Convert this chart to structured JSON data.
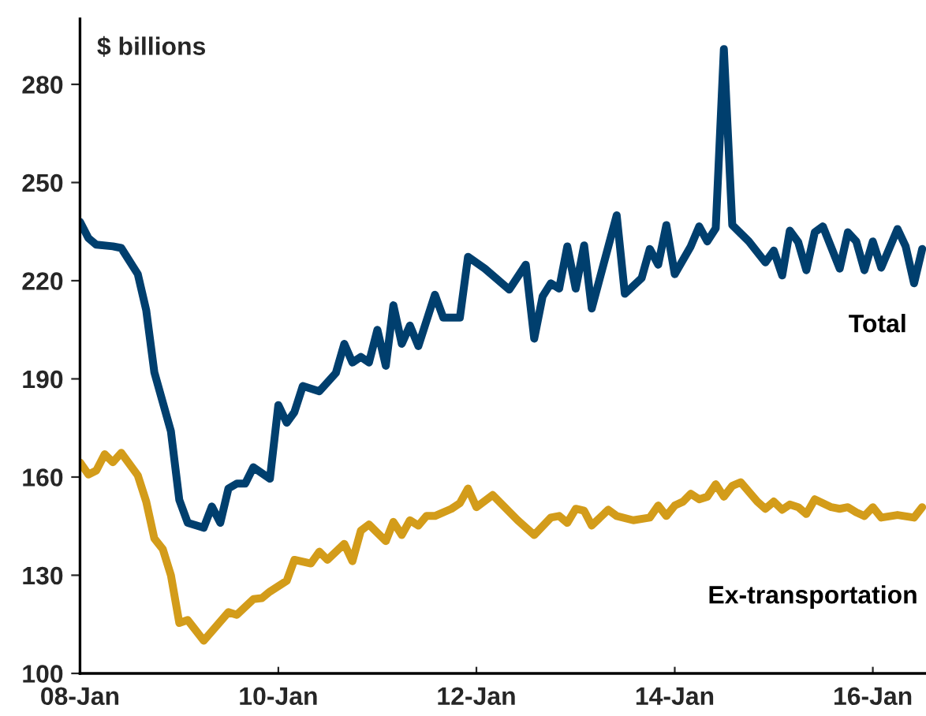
{
  "chart_data": {
    "type": "line",
    "ylabel": "$ billions",
    "xlim": [
      "2008-01",
      "2016-07-15"
    ],
    "xticks": [
      {
        "value": "2008-01",
        "label": "08-Jan"
      },
      {
        "value": "2010-01",
        "label": "10-Jan"
      },
      {
        "value": "2012-01",
        "label": "12-Jan"
      },
      {
        "value": "2014-01",
        "label": "14-Jan"
      },
      {
        "value": "2016-01",
        "label": "16-Jan"
      }
    ],
    "ylim": [
      100,
      300
    ],
    "yticks": [
      100,
      130,
      160,
      190,
      220,
      250,
      280
    ],
    "line_style": "solid",
    "series": [
      {
        "name": "Total",
        "color": "#003f6e",
        "x": [
          "2008-01",
          "2008-02",
          "2008-03",
          "2008-05",
          "2008-06",
          "2008-08",
          "2008-09",
          "2008-10",
          "2008-12",
          "2009-01",
          "2009-02",
          "2009-04",
          "2009-05",
          "2009-06",
          "2009-07",
          "2009-08",
          "2009-09",
          "2009-10",
          "2009-12",
          "2010-01",
          "2010-02",
          "2010-03",
          "2010-04",
          "2010-06",
          "2010-08",
          "2010-09",
          "2010-10",
          "2010-11",
          "2010-12",
          "2011-01",
          "2011-02",
          "2011-03",
          "2011-04",
          "2011-05",
          "2011-06",
          "2011-08",
          "2011-09",
          "2011-11",
          "2011-12",
          "2012-02",
          "2012-05",
          "2012-07",
          "2012-08",
          "2012-09",
          "2012-10",
          "2012-11",
          "2012-12",
          "2013-01",
          "2013-02",
          "2013-03",
          "2013-06",
          "2013-07",
          "2013-09",
          "2013-10",
          "2013-11",
          "2013-12",
          "2014-01",
          "2014-03",
          "2014-04",
          "2014-05",
          "2014-06",
          "2014-07",
          "2014-08",
          "2014-10",
          "2014-12",
          "2015-01",
          "2015-02",
          "2015-03",
          "2015-04",
          "2015-05",
          "2015-06",
          "2015-07",
          "2015-09",
          "2015-10",
          "2015-11",
          "2015-12",
          "2016-01",
          "2016-02",
          "2016-04",
          "2016-05",
          "2016-06",
          "2016-07"
        ],
        "values": [
          238,
          233,
          231,
          230.5,
          230,
          222,
          211,
          192,
          174,
          153,
          146,
          144.5,
          151,
          146,
          156.5,
          158,
          158,
          163,
          159.5,
          182,
          176.6,
          179.8,
          187.8,
          186.2,
          191.8,
          200.7,
          195,
          196.7,
          195,
          205,
          194,
          212.5,
          200.7,
          206.3,
          200,
          215.7,
          208.7,
          208.7,
          227.3,
          223.7,
          217.3,
          224.9,
          202.3,
          215.2,
          219.2,
          217.6,
          230.5,
          217.6,
          230.8,
          211.5,
          240,
          216,
          220.8,
          229.7,
          224.9,
          237,
          222,
          230.5,
          236.6,
          232,
          236,
          290.8,
          237,
          232,
          225.6,
          229.2,
          221.6,
          235.3,
          231.8,
          223.2,
          234.8,
          236.6,
          223.7,
          234.8,
          232,
          223.2,
          232,
          224,
          235.8,
          230.5,
          219.2,
          229.7
        ]
      },
      {
        "name": "Ex-transportation",
        "color": "#d39c1a",
        "x": [
          "2008-01",
          "2008-02",
          "2008-03",
          "2008-04",
          "2008-05",
          "2008-06",
          "2008-08",
          "2008-09",
          "2008-10",
          "2008-11",
          "2008-12",
          "2009-01",
          "2009-02",
          "2009-04",
          "2009-07",
          "2009-08",
          "2009-10",
          "2009-11",
          "2009-12",
          "2010-02",
          "2010-03",
          "2010-05",
          "2010-06",
          "2010-07",
          "2010-09",
          "2010-10",
          "2010-11",
          "2010-12",
          "2011-02",
          "2011-03",
          "2011-04",
          "2011-05",
          "2011-06",
          "2011-07",
          "2011-08",
          "2011-10",
          "2011-11",
          "2011-12",
          "2012-01",
          "2012-03",
          "2012-06",
          "2012-08",
          "2012-10",
          "2012-11",
          "2012-12",
          "2013-01",
          "2013-02",
          "2013-03",
          "2013-05",
          "2013-06",
          "2013-08",
          "2013-10",
          "2013-11",
          "2013-12",
          "2014-01",
          "2014-02",
          "2014-03",
          "2014-04",
          "2014-05",
          "2014-06",
          "2014-07",
          "2014-08",
          "2014-09",
          "2014-11",
          "2014-12",
          "2015-01",
          "2015-02",
          "2015-03",
          "2015-04",
          "2015-05",
          "2015-06",
          "2015-08",
          "2015-09",
          "2015-10",
          "2015-11",
          "2015-12",
          "2016-01",
          "2016-02",
          "2016-04",
          "2016-06",
          "2016-07"
        ],
        "values": [
          164.5,
          160.8,
          162,
          167,
          164.5,
          167.4,
          160.5,
          152.5,
          141.2,
          138,
          130,
          115.4,
          116.3,
          110,
          118.7,
          117.9,
          122.7,
          123,
          125,
          128.3,
          134.7,
          133.6,
          137.2,
          134.7,
          139.6,
          134.3,
          143.6,
          145.5,
          140.4,
          146.3,
          142.3,
          146.8,
          145.2,
          148.1,
          148.1,
          150.3,
          152,
          156.5,
          150.8,
          154.5,
          146.8,
          142.3,
          147.6,
          148.1,
          146,
          150.3,
          149.7,
          145.2,
          150,
          148.1,
          146.8,
          147.6,
          151.3,
          148.1,
          151.3,
          152.5,
          154.9,
          153.2,
          154,
          157.8,
          154,
          157.3,
          158.4,
          152.5,
          150.3,
          152.5,
          150,
          151.6,
          150.8,
          148.7,
          153.2,
          150.8,
          150.3,
          150.8,
          149.2,
          148.1,
          150.8,
          147.6,
          148.4,
          147.6,
          150.8
        ]
      }
    ]
  }
}
